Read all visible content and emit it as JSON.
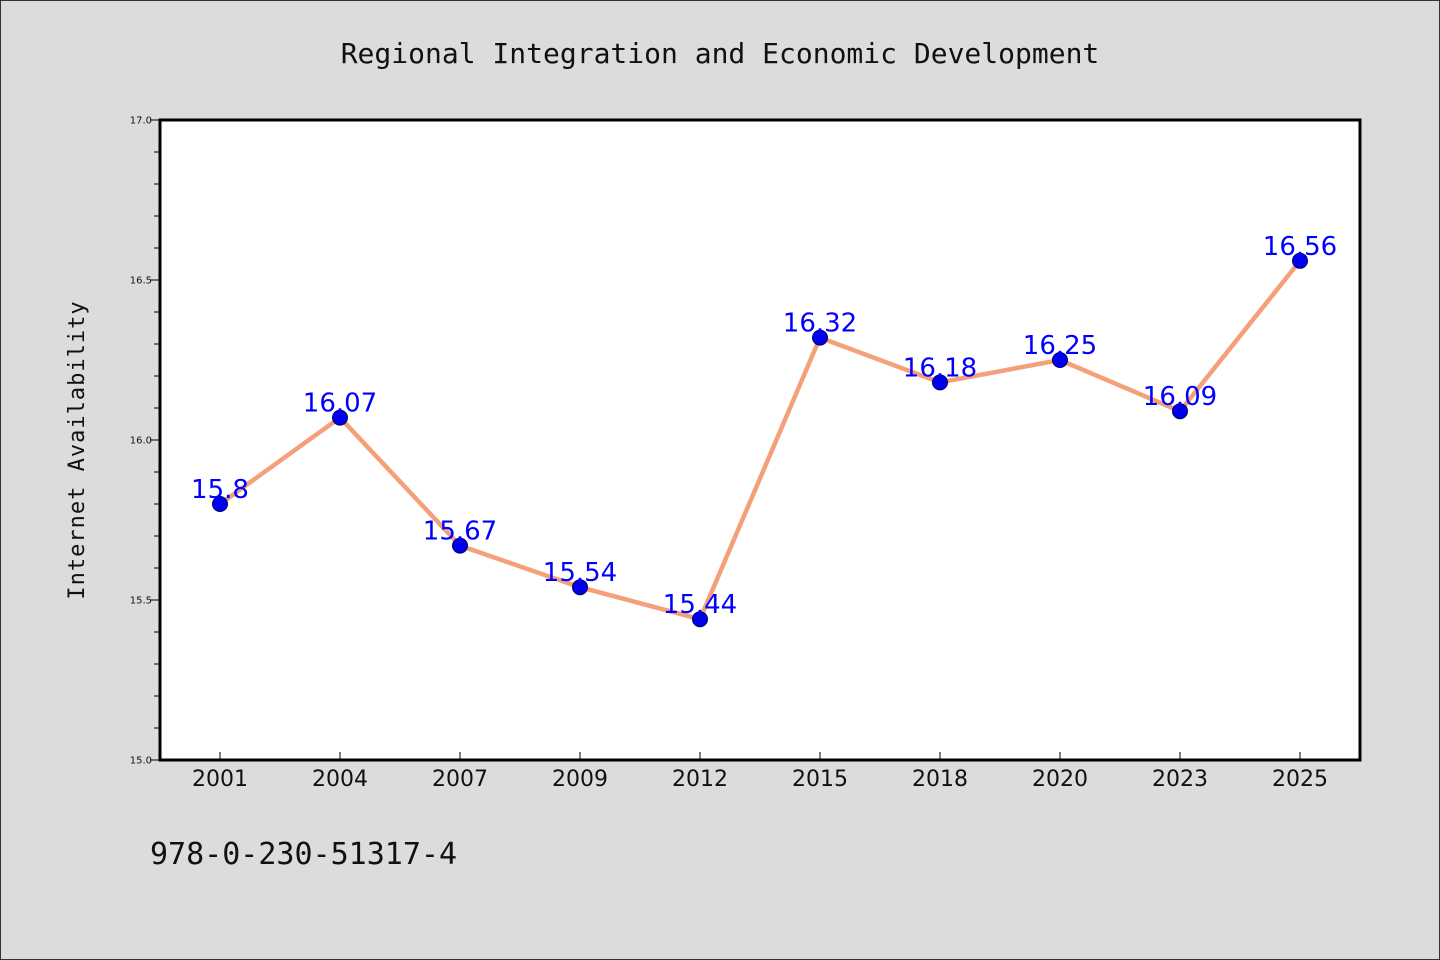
{
  "chart_data": {
    "type": "line",
    "title": "Regional Integration and Economic Development",
    "xlabel": "",
    "ylabel": "Internet Availability",
    "categories": [
      "2001",
      "2004",
      "2007",
      "2009",
      "2012",
      "2015",
      "2018",
      "2020",
      "2023",
      "2025"
    ],
    "series": [
      {
        "values": [
          15.8,
          16.07,
          15.67,
          15.54,
          15.44,
          16.32,
          16.18,
          16.25,
          16.09,
          16.56
        ],
        "labels": [
          "15.8",
          "16.07",
          "15.67",
          "15.54",
          "15.44",
          "16.32",
          "16.18",
          "16.25",
          "16.09",
          "16.56"
        ],
        "line_color": "#f4a07a",
        "marker_color": "#0000ee",
        "label_color": "#0000ff"
      }
    ],
    "ylim": [
      15.0,
      17.0
    ],
    "yticks": [
      "15.0",
      "15.5",
      "16.0",
      "16.5",
      "17.0"
    ],
    "grid": false,
    "legend": "none"
  },
  "footer_text": "978-0-230-51317-4",
  "colors": {
    "background": "#dcdcdc",
    "plot_background": "#ffffff"
  }
}
